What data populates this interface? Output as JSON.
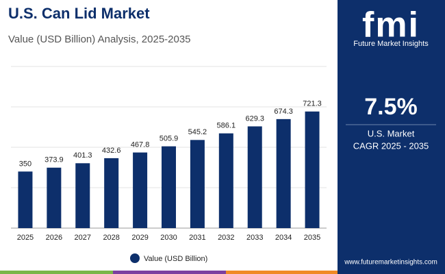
{
  "chart_data": {
    "type": "bar",
    "title": "U.S. Can Lid Market",
    "subtitle": "Value (USD Billion) Analysis, 2025-2035",
    "categories": [
      "2025",
      "2026",
      "2027",
      "2028",
      "2029",
      "2030",
      "2031",
      "2032",
      "2033",
      "2034",
      "2035"
    ],
    "series": [
      {
        "name": "Value (USD Billion)",
        "color": "#0d2f6b",
        "values": [
          350,
          373.9,
          401.3,
          432.6,
          467.8,
          505.9,
          545.2,
          586.1,
          629.3,
          674.3,
          721.3
        ]
      }
    ],
    "ylim": [
      0,
      1000
    ],
    "yticks": [
      0,
      250,
      500,
      750,
      1000
    ],
    "grid": true
  },
  "panel": {
    "logo": "fmi",
    "brand": "Future Market Insights",
    "cagr": "7.5%",
    "cagr_label_1": "U.S. Market",
    "cagr_label_2": "CAGR 2025 - 2035",
    "url": "www.futuremarketinsights.com"
  }
}
